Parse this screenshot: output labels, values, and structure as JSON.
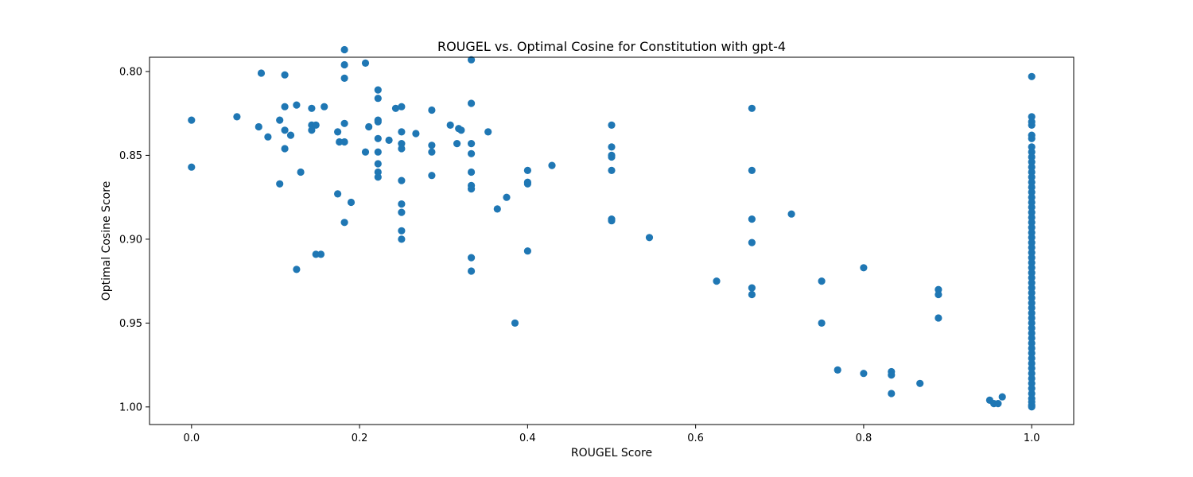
{
  "chart_data": {
    "type": "scatter",
    "title": "ROUGEL vs. Optimal Cosine for Constitution with gpt-4",
    "xlabel": "ROUGEL Score",
    "ylabel": "Optimal Cosine Score",
    "xlim": [
      -0.05,
      1.05
    ],
    "ylim": [
      0.7915,
      1.0105
    ],
    "y_inverted": true,
    "xticks": [
      0.0,
      0.2,
      0.4,
      0.6,
      0.8,
      1.0
    ],
    "xtick_labels": [
      "0.0",
      "0.2",
      "0.4",
      "0.6",
      "0.8",
      "1.0"
    ],
    "yticks": [
      0.8,
      0.85,
      0.9,
      0.95,
      1.0
    ],
    "ytick_labels": [
      "0.80",
      "0.85",
      "0.90",
      "0.95",
      "1.00"
    ],
    "grid": false,
    "marker_color": "#1f77b4",
    "points": [
      [
        0.0,
        0.829
      ],
      [
        0.0,
        0.857
      ],
      [
        0.054,
        0.827
      ],
      [
        0.08,
        0.833
      ],
      [
        0.083,
        0.801
      ],
      [
        0.091,
        0.839
      ],
      [
        0.105,
        0.829
      ],
      [
        0.105,
        0.867
      ],
      [
        0.111,
        0.802
      ],
      [
        0.111,
        0.821
      ],
      [
        0.111,
        0.835
      ],
      [
        0.111,
        0.846
      ],
      [
        0.118,
        0.838
      ],
      [
        0.125,
        0.82
      ],
      [
        0.125,
        0.918
      ],
      [
        0.13,
        0.86
      ],
      [
        0.143,
        0.822
      ],
      [
        0.143,
        0.832
      ],
      [
        0.143,
        0.835
      ],
      [
        0.148,
        0.832
      ],
      [
        0.148,
        0.909
      ],
      [
        0.154,
        0.909
      ],
      [
        0.158,
        0.821
      ],
      [
        0.174,
        0.836
      ],
      [
        0.174,
        0.873
      ],
      [
        0.176,
        0.842
      ],
      [
        0.182,
        0.787
      ],
      [
        0.182,
        0.796
      ],
      [
        0.182,
        0.804
      ],
      [
        0.182,
        0.831
      ],
      [
        0.182,
        0.842
      ],
      [
        0.182,
        0.89
      ],
      [
        0.19,
        0.878
      ],
      [
        0.207,
        0.795
      ],
      [
        0.207,
        0.848
      ],
      [
        0.211,
        0.833
      ],
      [
        0.222,
        0.811
      ],
      [
        0.222,
        0.816
      ],
      [
        0.222,
        0.829
      ],
      [
        0.222,
        0.83
      ],
      [
        0.222,
        0.84
      ],
      [
        0.222,
        0.848
      ],
      [
        0.222,
        0.855
      ],
      [
        0.222,
        0.86
      ],
      [
        0.222,
        0.863
      ],
      [
        0.235,
        0.841
      ],
      [
        0.243,
        0.822
      ],
      [
        0.25,
        0.821
      ],
      [
        0.25,
        0.836
      ],
      [
        0.25,
        0.843
      ],
      [
        0.25,
        0.846
      ],
      [
        0.25,
        0.865
      ],
      [
        0.25,
        0.879
      ],
      [
        0.25,
        0.884
      ],
      [
        0.25,
        0.895
      ],
      [
        0.25,
        0.9
      ],
      [
        0.267,
        0.837
      ],
      [
        0.286,
        0.823
      ],
      [
        0.286,
        0.844
      ],
      [
        0.286,
        0.848
      ],
      [
        0.286,
        0.862
      ],
      [
        0.308,
        0.832
      ],
      [
        0.316,
        0.843
      ],
      [
        0.318,
        0.834
      ],
      [
        0.321,
        0.835
      ],
      [
        0.333,
        0.793
      ],
      [
        0.333,
        0.819
      ],
      [
        0.333,
        0.843
      ],
      [
        0.333,
        0.849
      ],
      [
        0.333,
        0.86
      ],
      [
        0.333,
        0.868
      ],
      [
        0.333,
        0.87
      ],
      [
        0.333,
        0.911
      ],
      [
        0.333,
        0.919
      ],
      [
        0.353,
        0.836
      ],
      [
        0.364,
        0.882
      ],
      [
        0.375,
        0.875
      ],
      [
        0.385,
        0.95
      ],
      [
        0.4,
        0.859
      ],
      [
        0.4,
        0.866
      ],
      [
        0.4,
        0.867
      ],
      [
        0.4,
        0.907
      ],
      [
        0.429,
        0.856
      ],
      [
        0.5,
        0.832
      ],
      [
        0.5,
        0.845
      ],
      [
        0.5,
        0.85
      ],
      [
        0.5,
        0.851
      ],
      [
        0.5,
        0.859
      ],
      [
        0.5,
        0.888
      ],
      [
        0.5,
        0.889
      ],
      [
        0.545,
        0.899
      ],
      [
        0.625,
        0.925
      ],
      [
        0.667,
        0.822
      ],
      [
        0.667,
        0.859
      ],
      [
        0.667,
        0.888
      ],
      [
        0.667,
        0.902
      ],
      [
        0.667,
        0.929
      ],
      [
        0.667,
        0.933
      ],
      [
        0.714,
        0.885
      ],
      [
        0.75,
        0.925
      ],
      [
        0.75,
        0.95
      ],
      [
        0.769,
        0.978
      ],
      [
        0.8,
        0.917
      ],
      [
        0.8,
        0.98
      ],
      [
        0.833,
        0.979
      ],
      [
        0.833,
        0.981
      ],
      [
        0.833,
        0.992
      ],
      [
        0.867,
        0.986
      ],
      [
        0.889,
        0.93
      ],
      [
        0.889,
        0.933
      ],
      [
        0.889,
        0.947
      ],
      [
        0.95,
        0.996
      ],
      [
        0.955,
        0.998
      ],
      [
        0.96,
        0.998
      ],
      [
        0.965,
        0.994
      ],
      [
        1.0,
        0.803
      ],
      [
        1.0,
        0.827
      ],
      [
        1.0,
        0.83
      ],
      [
        1.0,
        0.832
      ],
      [
        1.0,
        0.838
      ],
      [
        1.0,
        0.84
      ],
      [
        1.0,
        0.845
      ],
      [
        1.0,
        0.848
      ],
      [
        1.0,
        0.851
      ],
      [
        1.0,
        0.854
      ],
      [
        1.0,
        0.857
      ],
      [
        1.0,
        0.86
      ],
      [
        1.0,
        0.863
      ],
      [
        1.0,
        0.866
      ],
      [
        1.0,
        0.869
      ],
      [
        1.0,
        0.872
      ],
      [
        1.0,
        0.875
      ],
      [
        1.0,
        0.878
      ],
      [
        1.0,
        0.881
      ],
      [
        1.0,
        0.884
      ],
      [
        1.0,
        0.887
      ],
      [
        1.0,
        0.89
      ],
      [
        1.0,
        0.893
      ],
      [
        1.0,
        0.896
      ],
      [
        1.0,
        0.899
      ],
      [
        1.0,
        0.902
      ],
      [
        1.0,
        0.905
      ],
      [
        1.0,
        0.908
      ],
      [
        1.0,
        0.911
      ],
      [
        1.0,
        0.914
      ],
      [
        1.0,
        0.917
      ],
      [
        1.0,
        0.92
      ],
      [
        1.0,
        0.923
      ],
      [
        1.0,
        0.926
      ],
      [
        1.0,
        0.929
      ],
      [
        1.0,
        0.932
      ],
      [
        1.0,
        0.935
      ],
      [
        1.0,
        0.938
      ],
      [
        1.0,
        0.941
      ],
      [
        1.0,
        0.944
      ],
      [
        1.0,
        0.947
      ],
      [
        1.0,
        0.95
      ],
      [
        1.0,
        0.953
      ],
      [
        1.0,
        0.956
      ],
      [
        1.0,
        0.959
      ],
      [
        1.0,
        0.962
      ],
      [
        1.0,
        0.965
      ],
      [
        1.0,
        0.968
      ],
      [
        1.0,
        0.971
      ],
      [
        1.0,
        0.974
      ],
      [
        1.0,
        0.977
      ],
      [
        1.0,
        0.98
      ],
      [
        1.0,
        0.983
      ],
      [
        1.0,
        0.986
      ],
      [
        1.0,
        0.989
      ],
      [
        1.0,
        0.992
      ],
      [
        1.0,
        0.995
      ],
      [
        1.0,
        0.997
      ],
      [
        1.0,
        0.999
      ],
      [
        1.0,
        1.0
      ]
    ]
  }
}
